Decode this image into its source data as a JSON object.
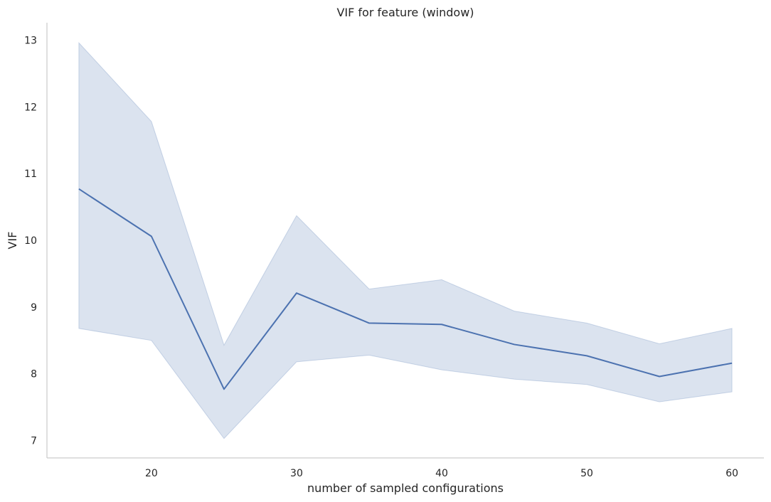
{
  "chart_data": {
    "type": "line",
    "title": "VIF for feature (window)",
    "xlabel": "number of sampled configurations",
    "ylabel": "VIF",
    "x": [
      15,
      20,
      25,
      30,
      35,
      40,
      45,
      50,
      55,
      60
    ],
    "series": [
      {
        "values": [
          10.77,
          10.06,
          7.77,
          9.21,
          8.76,
          8.74,
          8.44,
          8.27,
          7.96,
          8.16
        ],
        "ci_lower": [
          8.68,
          8.5,
          7.03,
          8.18,
          8.28,
          8.06,
          7.92,
          7.84,
          7.58,
          7.73
        ],
        "ci_upper": [
          12.96,
          11.78,
          8.43,
          10.37,
          9.27,
          9.41,
          8.94,
          8.76,
          8.45,
          8.68
        ],
        "color": "#4c72b0"
      }
    ],
    "xticks": [
      20,
      30,
      40,
      50,
      60
    ],
    "yticks": [
      7,
      8,
      9,
      10,
      11,
      12,
      13
    ],
    "xlim": [
      12.8,
      62.2
    ],
    "ylim": [
      6.74,
      13.26
    ],
    "grid": false,
    "legend": "none"
  }
}
